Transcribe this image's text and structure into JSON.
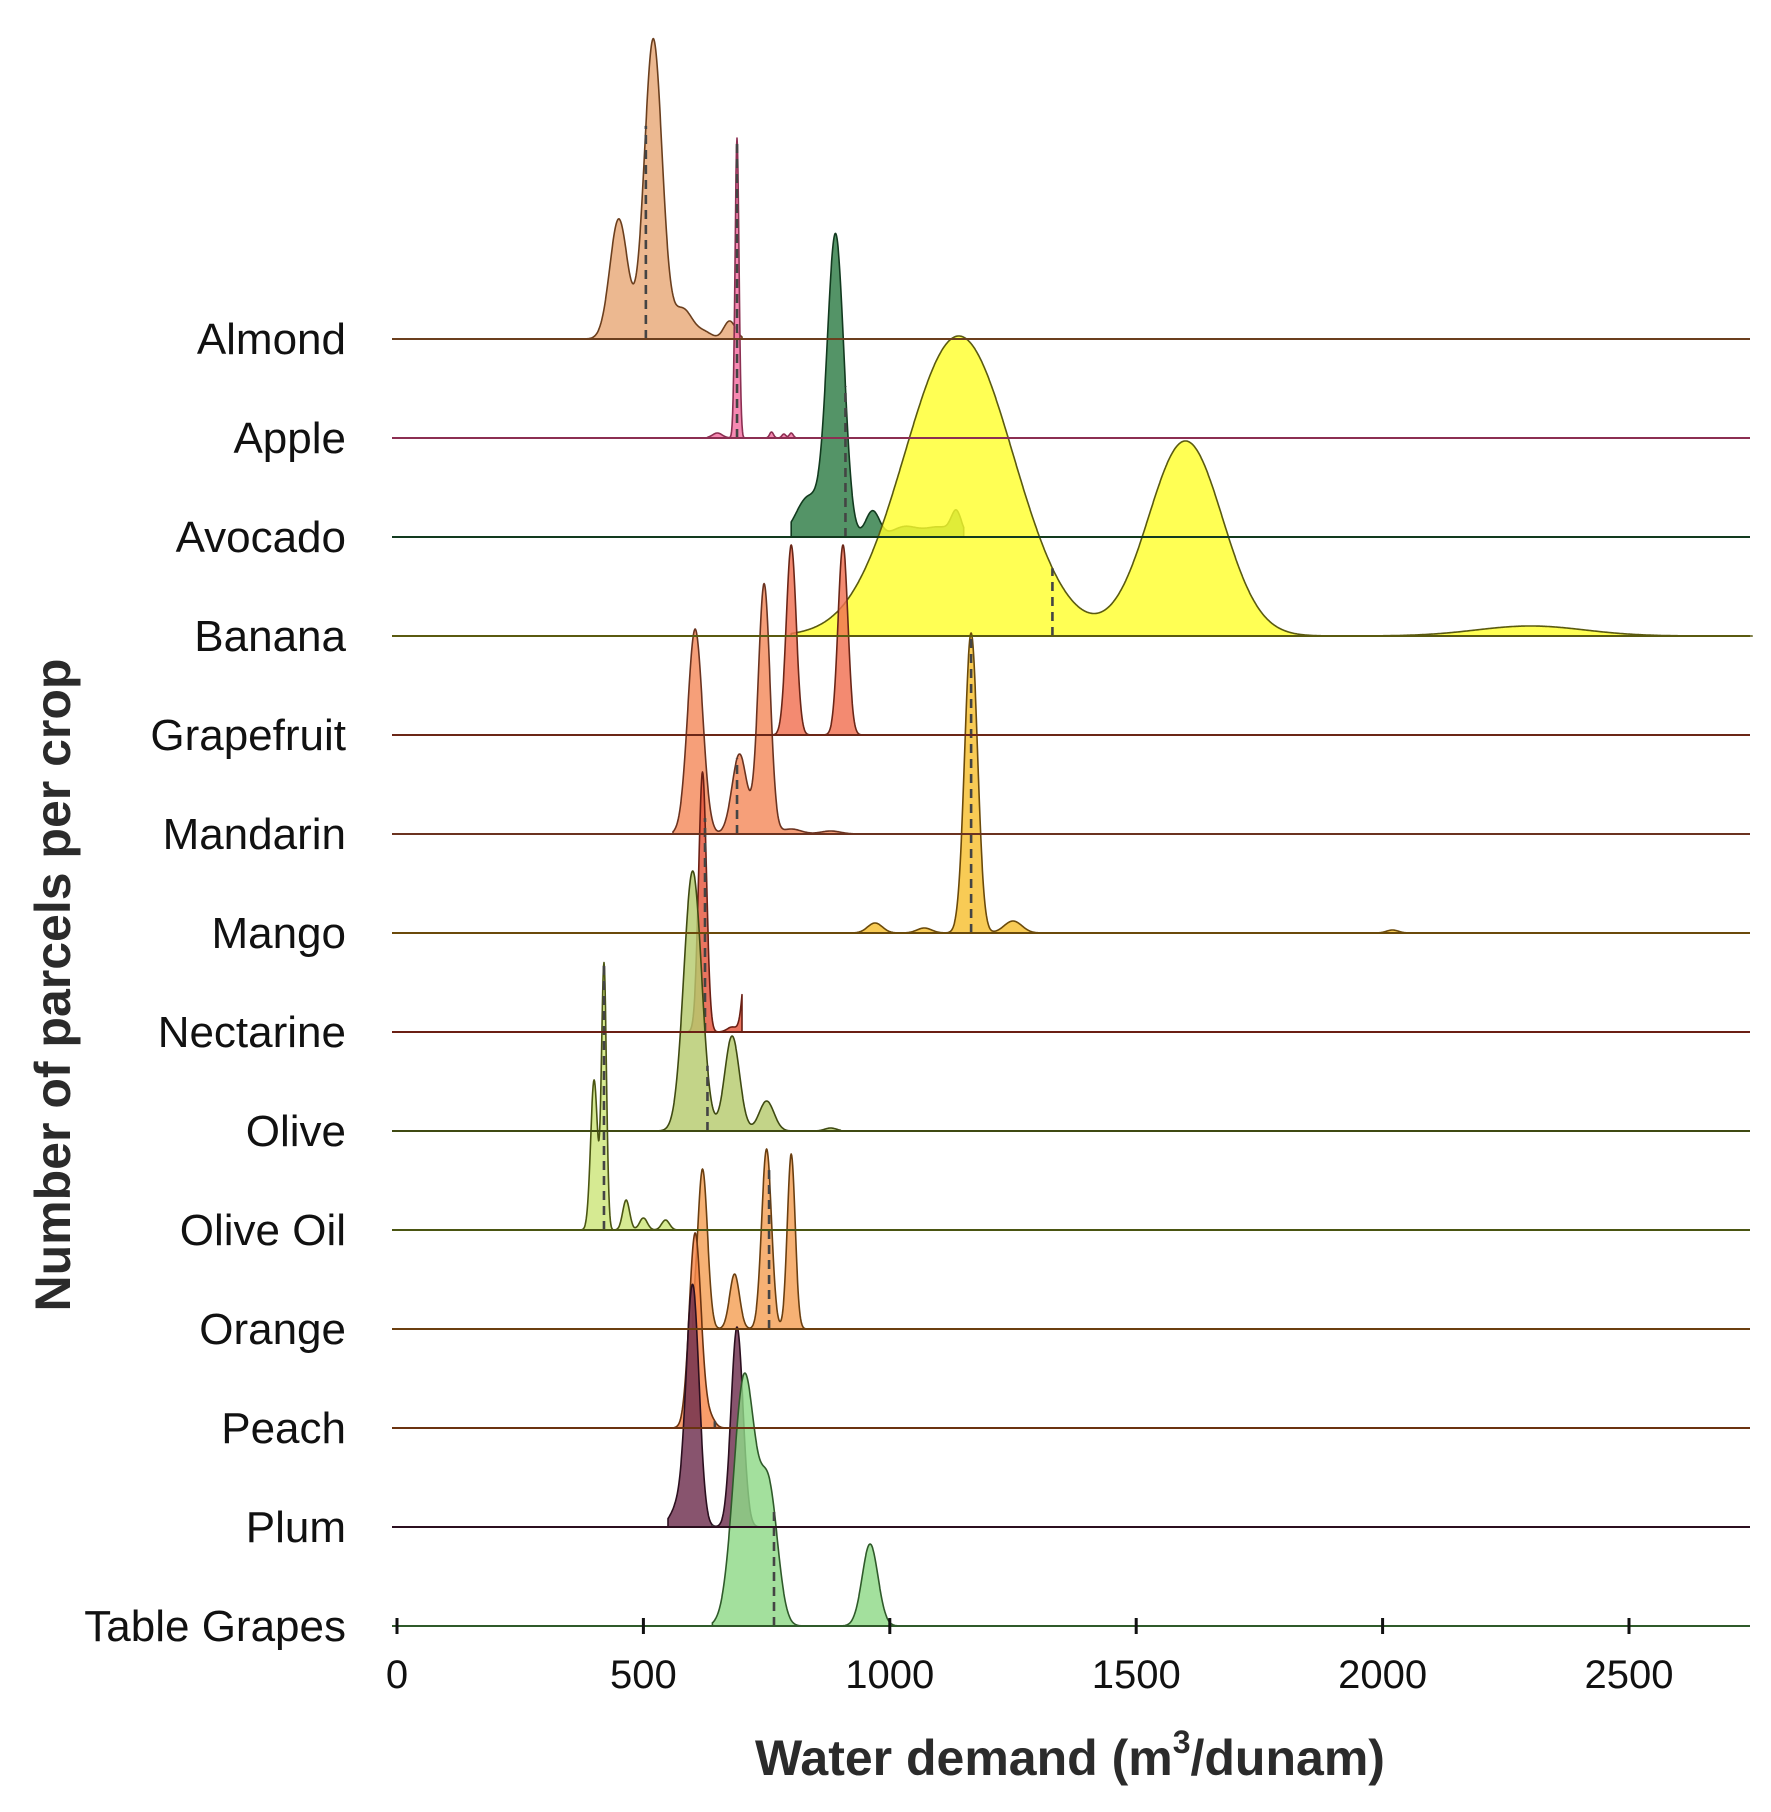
{
  "chart_data": {
    "type": "area",
    "title": "",
    "xlabel_main": "Water demand (m",
    "xlabel_sup": "3",
    "xlabel_tail": "/dunam)",
    "ylabel": "Number of parcels per crop",
    "xlim": [
      -50,
      2750
    ],
    "x_ticks": [
      0,
      500,
      1000,
      1500,
      2000,
      2500
    ],
    "x_tick_labels": [
      "0",
      "500",
      "1000",
      "1500",
      "2000",
      "2500"
    ],
    "grid": false,
    "legend": "none",
    "median_line_style": "dashed",
    "series": [
      {
        "name": "Almond",
        "color": "#E8A877",
        "edge": "#6b3f1e",
        "median": 505,
        "range": [
          385,
          700
        ],
        "peaks": [
          [
            450,
            120,
            18
          ],
          [
            520,
            300,
            18
          ],
          [
            580,
            30,
            20
          ],
          [
            675,
            18,
            12
          ],
          [
            625,
            6,
            15
          ]
        ]
      },
      {
        "name": "Apple",
        "color": "#F46FA1",
        "edge": "#8c2f52",
        "median": 690,
        "range": [
          630,
          820
        ],
        "peaks": [
          [
            690,
            300,
            4
          ],
          [
            650,
            5,
            10
          ],
          [
            760,
            6,
            4
          ],
          [
            785,
            4,
            4
          ],
          [
            800,
            5,
            4
          ]
        ]
      },
      {
        "name": "Avocado",
        "color": "#2E7D45",
        "edge": "#123a1f",
        "median": 910,
        "range": [
          800,
          1150
        ],
        "peaks": [
          [
            890,
            300,
            17
          ],
          [
            835,
            40,
            25
          ],
          [
            965,
            26,
            14
          ],
          [
            1030,
            10,
            25
          ],
          [
            1100,
            10,
            30
          ],
          [
            1135,
            22,
            10
          ]
        ]
      },
      {
        "name": "Banana",
        "color": "#FFFF2E",
        "edge": "#5a5a10",
        "median": 1330,
        "range": [
          800,
          2750
        ],
        "peaks": [
          [
            1140,
            300,
            110
          ],
          [
            1600,
            195,
            75
          ],
          [
            2300,
            10,
            110
          ]
        ]
      },
      {
        "name": "Grapefruit",
        "color": "#F07052",
        "edge": "#6b2617",
        "median": 855,
        "range": [
          755,
          950
        ],
        "peaks": [
          [
            800,
            190,
            10
          ],
          [
            905,
            190,
            10
          ]
        ]
      },
      {
        "name": "Mandarin",
        "color": "#F48A5C",
        "edge": "#6b3320",
        "median": 690,
        "range": [
          560,
          930
        ],
        "peaks": [
          [
            605,
            205,
            15
          ],
          [
            695,
            80,
            15
          ],
          [
            745,
            250,
            12
          ],
          [
            800,
            5,
            20
          ],
          [
            880,
            3,
            20
          ]
        ]
      },
      {
        "name": "Mango",
        "color": "#F6C030",
        "edge": "#6b4a0a",
        "median": 1165,
        "range": [
          900,
          2050
        ],
        "peaks": [
          [
            1165,
            300,
            13
          ],
          [
            970,
            10,
            15
          ],
          [
            1070,
            5,
            15
          ],
          [
            1250,
            12,
            18
          ],
          [
            2020,
            3,
            12
          ]
        ]
      },
      {
        "name": "Nectarine",
        "color": "#E5563C",
        "edge": "#6b1f14",
        "median": 625,
        "range": [
          560,
          700
        ],
        "peaks": [
          [
            620,
            260,
            8
          ],
          [
            710,
            80,
            8
          ],
          [
            680,
            5,
            10
          ]
        ]
      },
      {
        "name": "Olive",
        "color": "#B6CB6E",
        "edge": "#3f4a12",
        "median": 630,
        "range": [
          520,
          900
        ],
        "peaks": [
          [
            600,
            260,
            18
          ],
          [
            680,
            95,
            15
          ],
          [
            750,
            30,
            15
          ],
          [
            880,
            3,
            12
          ]
        ]
      },
      {
        "name": "Olive Oil",
        "color": "#CDE57A",
        "edge": "#4a5512",
        "median": 420,
        "range": [
          370,
          570
        ],
        "peaks": [
          [
            400,
            150,
            7
          ],
          [
            420,
            265,
            5
          ],
          [
            465,
            30,
            7
          ],
          [
            500,
            12,
            8
          ],
          [
            545,
            10,
            8
          ]
        ]
      },
      {
        "name": "Orange",
        "color": "#F4A055",
        "edge": "#6b3f10",
        "median": 755,
        "range": [
          600,
          950
        ],
        "peaks": [
          [
            620,
            160,
            10
          ],
          [
            685,
            55,
            10
          ],
          [
            750,
            180,
            10
          ],
          [
            800,
            175,
            8
          ]
        ]
      },
      {
        "name": "Peach",
        "color": "#F8884A",
        "edge": "#6b3310",
        "median": 645,
        "range": [
          560,
          690
        ],
        "peaks": [
          [
            605,
            195,
            12
          ],
          [
            635,
            10,
            10
          ]
        ]
      },
      {
        "name": "Plum",
        "color": "#6E2E4E",
        "edge": "#2b0f1f",
        "median": 640,
        "range": [
          550,
          740
        ],
        "peaks": [
          [
            600,
            240,
            13
          ],
          [
            570,
            20,
            15
          ],
          [
            690,
            200,
            12
          ]
        ]
      },
      {
        "name": "Table Grapes",
        "color": "#8FD987",
        "edge": "#2f5a2a",
        "median": 765,
        "range": [
          640,
          1030
        ],
        "peaks": [
          [
            705,
            250,
            22
          ],
          [
            755,
            130,
            18
          ],
          [
            960,
            82,
            16
          ]
        ]
      }
    ]
  }
}
